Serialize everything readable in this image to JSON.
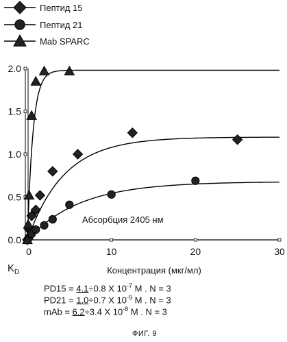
{
  "chart_data": {
    "type": "scatter",
    "xlabel": "Концентрация (мкг/мл)",
    "ylabel": "K",
    "ylabel_sub": "D",
    "xlim": [
      0,
      30
    ],
    "ylim": [
      0,
      2.0
    ],
    "xticks": [
      "0",
      "10",
      "20",
      "30"
    ],
    "yticks": [
      "0.0",
      "0.5",
      "1.0",
      "1.5",
      "2.0"
    ],
    "annotation": "Абсорбция 2405 нм",
    "legend_position": "top-left",
    "series": [
      {
        "name": "Пептид  15",
        "marker": "diamond",
        "x": [
          0,
          0.2,
          0.5,
          1.0,
          1.5,
          3.0,
          6.0,
          12.5,
          25.0
        ],
        "y": [
          0.0,
          0.12,
          0.28,
          0.35,
          0.52,
          0.8,
          1.0,
          1.25,
          1.17
        ],
        "fit_ymax": 1.2,
        "fit_k": 0.23
      },
      {
        "name": "Пептид  21",
        "marker": "circle",
        "x": [
          0,
          0.2,
          0.5,
          1.0,
          2.0,
          3.0,
          5.0,
          10.0,
          20.0
        ],
        "y": [
          0.0,
          0.03,
          0.07,
          0.12,
          0.17,
          0.24,
          0.41,
          0.53,
          0.69
        ],
        "fit_ymax": 0.68,
        "fit_k": 0.16
      },
      {
        "name": "Mab SPARC",
        "marker": "triangle",
        "x": [
          0,
          0.1,
          0.2,
          0.5,
          1.0,
          2.0,
          5.0
        ],
        "y": [
          0.0,
          0.18,
          0.52,
          1.45,
          1.85,
          1.97,
          1.97
        ],
        "fit_ymax": 1.98,
        "fit_k": 1.5
      }
    ]
  },
  "formulas": [
    {
      "prefix": "PD15 = ",
      "underlined": "4.1",
      "suffix": "÷0.8 X 10",
      "exp": "-7",
      "tail": " M . N = 3"
    },
    {
      "prefix": "PD21 = ",
      "underlined": "1.0",
      "suffix": "÷0.7 X 10",
      "exp": "-9",
      "tail": " M . N = 3"
    },
    {
      "prefix": "mAb  = ",
      "underlined": "6.2",
      "suffix": "÷3.4 X 10",
      "exp": "-8",
      "tail": " M . N = 3"
    }
  ],
  "figure_caption": "ФИГ. 9"
}
